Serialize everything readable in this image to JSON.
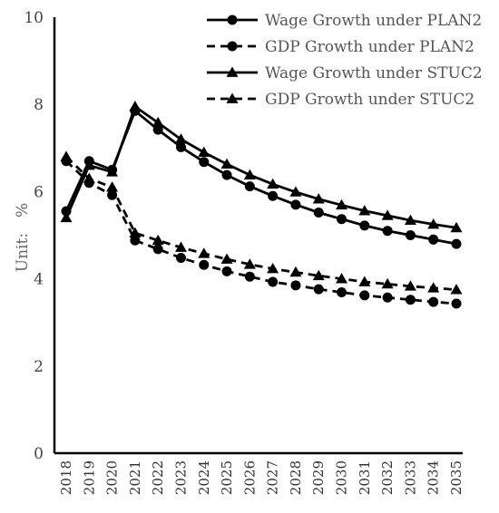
{
  "chart_data": {
    "type": "line",
    "title": "",
    "xlabel": "",
    "ylabel": "Unit:　%",
    "ylim": [
      0,
      10
    ],
    "yticks": [
      "0",
      "2",
      "4",
      "6",
      "8",
      "10"
    ],
    "grid": false,
    "legend_position": "top-right",
    "categories": [
      "2018",
      "2019",
      "2020",
      "2021",
      "2022",
      "2023",
      "2024",
      "2025",
      "2026",
      "2027",
      "2028",
      "2029",
      "2030",
      "2031",
      "2032",
      "2033",
      "2034",
      "2035"
    ],
    "series": [
      {
        "name": "Wage Growth under PLAN2",
        "style": "solid",
        "marker": "circle",
        "values": [
          5.55,
          6.7,
          6.5,
          7.85,
          7.42,
          7.02,
          6.68,
          6.38,
          6.12,
          5.9,
          5.7,
          5.52,
          5.37,
          5.22,
          5.1,
          5.0,
          4.9,
          4.8
        ]
      },
      {
        "name": "GDP Growth under PLAN2",
        "style": "dashed",
        "marker": "circle",
        "values": [
          6.7,
          6.2,
          5.92,
          4.88,
          4.68,
          4.48,
          4.32,
          4.17,
          4.05,
          3.93,
          3.85,
          3.76,
          3.69,
          3.62,
          3.57,
          3.52,
          3.47,
          3.43
        ]
      },
      {
        "name": "Wage Growth under STUC2",
        "style": "solid",
        "marker": "triangle",
        "values": [
          5.4,
          6.6,
          6.45,
          7.95,
          7.58,
          7.2,
          6.9,
          6.63,
          6.38,
          6.17,
          5.99,
          5.83,
          5.69,
          5.56,
          5.45,
          5.34,
          5.25,
          5.17
        ]
      },
      {
        "name": "GDP Growth under STUC2",
        "style": "dashed",
        "marker": "triangle",
        "values": [
          6.8,
          6.3,
          6.1,
          5.05,
          4.88,
          4.72,
          4.58,
          4.45,
          4.33,
          4.23,
          4.15,
          4.07,
          4.0,
          3.93,
          3.88,
          3.83,
          3.79,
          3.75
        ]
      }
    ]
  },
  "colors": {
    "series": "#000000",
    "axis": "#000000"
  }
}
